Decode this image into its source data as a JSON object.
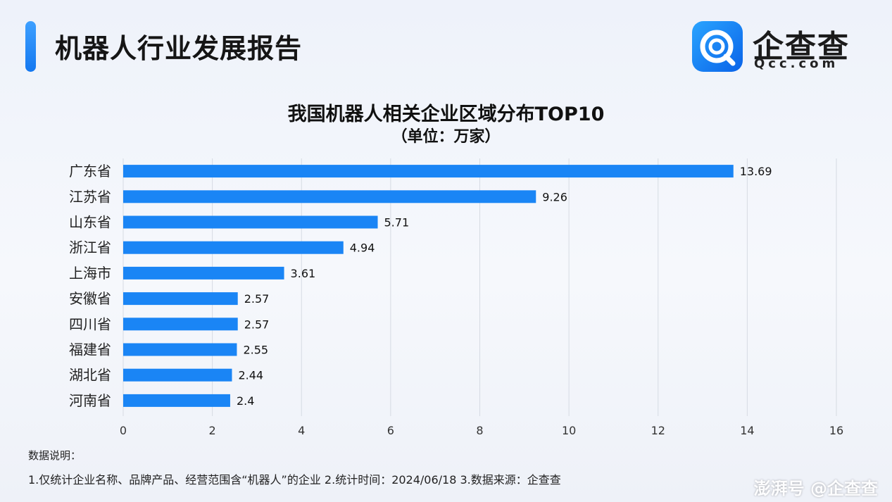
{
  "header": {
    "title": "机器人行业发展报告",
    "logo_name": "企查查",
    "logo_domain": "Qcc.com",
    "accent_color": "#1a85f5"
  },
  "chart_data": {
    "type": "bar",
    "orientation": "horizontal",
    "title": "我国机器人相关企业区域分布TOP10",
    "subtitle": "（单位：万家）",
    "categories": [
      "广东省",
      "江苏省",
      "山东省",
      "浙江省",
      "上海市",
      "安徽省",
      "四川省",
      "福建省",
      "湖北省",
      "河南省"
    ],
    "values": [
      13.69,
      9.26,
      5.71,
      4.94,
      3.61,
      2.57,
      2.57,
      2.55,
      2.44,
      2.4
    ],
    "value_labels": [
      "13.69",
      "9.26",
      "5.71",
      "4.94",
      "3.61",
      "2.57",
      "2.57",
      "2.55",
      "2.44",
      "2.4"
    ],
    "xlim": [
      0,
      16
    ],
    "xticks": [
      0,
      2,
      4,
      6,
      8,
      10,
      12,
      14,
      16
    ],
    "grid": true,
    "bar_color": "#1a85f5"
  },
  "notes": {
    "heading": "数据说明：",
    "line": "1.仅统计企业名称、品牌产品、经营范围含“机器人”的企业   2.统计时间：2024/06/18    3.数据来源：企查查"
  },
  "watermark": "澎湃号 @企查查"
}
